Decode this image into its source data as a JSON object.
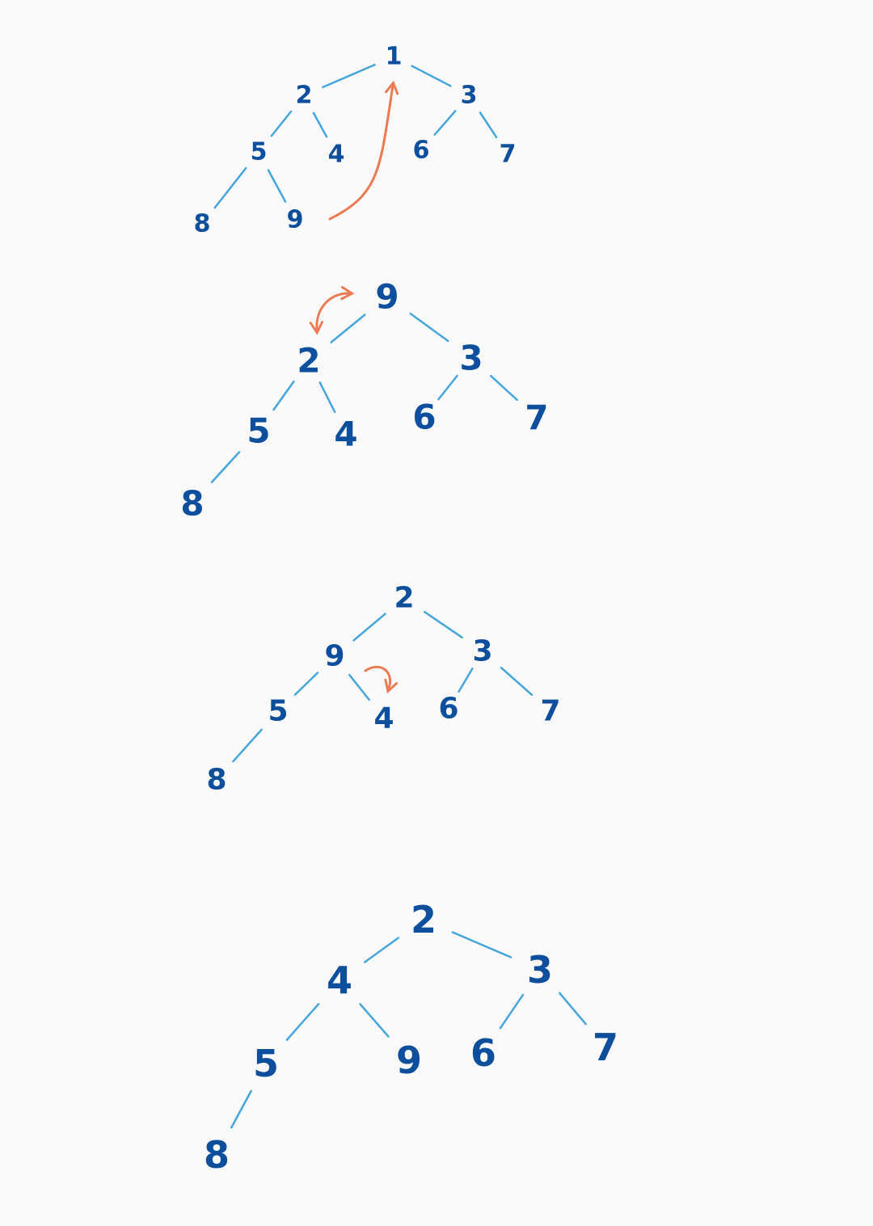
{
  "colors": {
    "background": "#fafafa",
    "node_text": "#0d4f9c",
    "edge": "#45a6dc",
    "arrow": "#ec7a52"
  },
  "diagrams": [
    {
      "id": "step-1",
      "nodes": [
        {
          "id": "a",
          "label": "1"
        },
        {
          "id": "b",
          "label": "2"
        },
        {
          "id": "c",
          "label": "3"
        },
        {
          "id": "d",
          "label": "5"
        },
        {
          "id": "e",
          "label": "4"
        },
        {
          "id": "f",
          "label": "6"
        },
        {
          "id": "g",
          "label": "7"
        },
        {
          "id": "h",
          "label": "8"
        },
        {
          "id": "i",
          "label": "9"
        }
      ],
      "edges": [
        [
          "a",
          "b"
        ],
        [
          "a",
          "c"
        ],
        [
          "b",
          "d"
        ],
        [
          "b",
          "e"
        ],
        [
          "c",
          "f"
        ],
        [
          "c",
          "g"
        ],
        [
          "d",
          "h"
        ],
        [
          "d",
          "i"
        ]
      ],
      "arrows": [
        {
          "from": "i",
          "to": "a",
          "kind": "move-to-root"
        }
      ]
    },
    {
      "id": "step-2",
      "nodes": [
        {
          "id": "a",
          "label": "9"
        },
        {
          "id": "b",
          "label": "2"
        },
        {
          "id": "c",
          "label": "3"
        },
        {
          "id": "d",
          "label": "5"
        },
        {
          "id": "e",
          "label": "4"
        },
        {
          "id": "f",
          "label": "6"
        },
        {
          "id": "g",
          "label": "7"
        },
        {
          "id": "h",
          "label": "8"
        }
      ],
      "edges": [
        [
          "a",
          "b"
        ],
        [
          "a",
          "c"
        ],
        [
          "b",
          "d"
        ],
        [
          "b",
          "e"
        ],
        [
          "c",
          "f"
        ],
        [
          "c",
          "g"
        ],
        [
          "d",
          "h"
        ]
      ],
      "arrows": [
        {
          "from": "a",
          "to": "b",
          "kind": "swap"
        }
      ]
    },
    {
      "id": "step-3",
      "nodes": [
        {
          "id": "a",
          "label": "2"
        },
        {
          "id": "b",
          "label": "9"
        },
        {
          "id": "c",
          "label": "3"
        },
        {
          "id": "d",
          "label": "5"
        },
        {
          "id": "e",
          "label": "4"
        },
        {
          "id": "f",
          "label": "6"
        },
        {
          "id": "g",
          "label": "7"
        },
        {
          "id": "h",
          "label": "8"
        }
      ],
      "edges": [
        [
          "a",
          "b"
        ],
        [
          "a",
          "c"
        ],
        [
          "b",
          "d"
        ],
        [
          "b",
          "e"
        ],
        [
          "c",
          "f"
        ],
        [
          "c",
          "g"
        ],
        [
          "d",
          "h"
        ]
      ],
      "arrows": [
        {
          "from": "b",
          "to": "e",
          "kind": "swap"
        }
      ]
    },
    {
      "id": "step-4",
      "nodes": [
        {
          "id": "a",
          "label": "2"
        },
        {
          "id": "b",
          "label": "4"
        },
        {
          "id": "c",
          "label": "3"
        },
        {
          "id": "d",
          "label": "5"
        },
        {
          "id": "e",
          "label": "9"
        },
        {
          "id": "f",
          "label": "6"
        },
        {
          "id": "g",
          "label": "7"
        },
        {
          "id": "h",
          "label": "8"
        }
      ],
      "edges": [
        [
          "a",
          "b"
        ],
        [
          "a",
          "c"
        ],
        [
          "b",
          "d"
        ],
        [
          "b",
          "e"
        ],
        [
          "c",
          "f"
        ],
        [
          "c",
          "g"
        ],
        [
          "d",
          "h"
        ]
      ],
      "arrows": []
    }
  ]
}
